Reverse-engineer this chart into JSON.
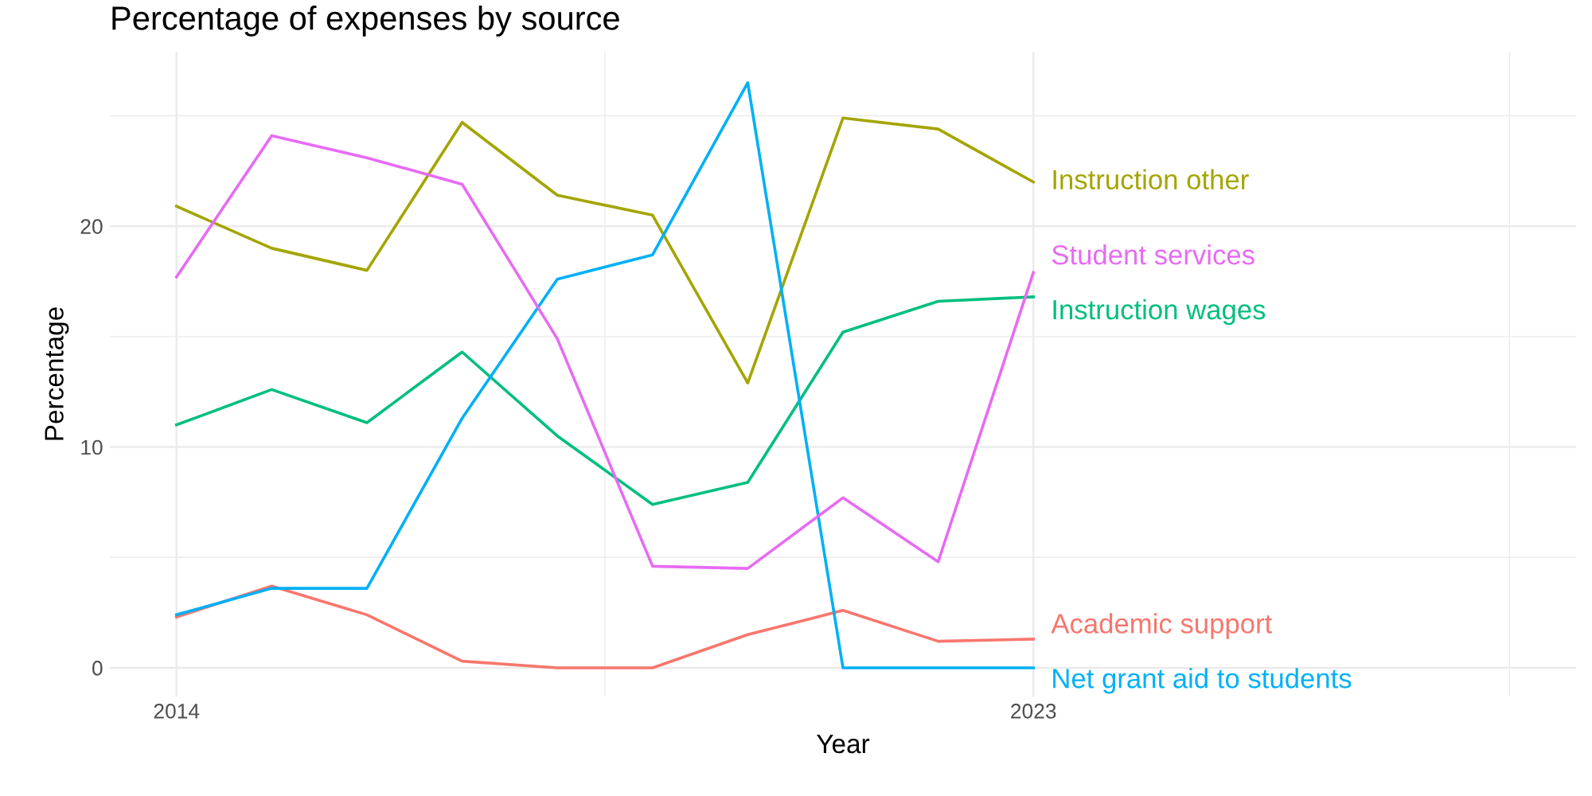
{
  "chart_data": {
    "type": "line",
    "title": "Percentage of expenses by source",
    "xlabel": "Year",
    "ylabel": "Percentage",
    "x": [
      2014,
      2015,
      2016,
      2017,
      2018,
      2019,
      2020,
      2021,
      2022,
      2023
    ],
    "series": [
      {
        "name": "Academic support",
        "color": "#f8766d",
        "values": [
          2.3,
          3.7,
          2.4,
          0.3,
          0,
          0,
          1.5,
          2.6,
          1.2,
          1.3
        ]
      },
      {
        "name": "Instruction other",
        "color": "#a3a500",
        "values": [
          20.9,
          19.0,
          18.0,
          24.7,
          21.4,
          20.5,
          12.9,
          24.9,
          24.4,
          22.0
        ]
      },
      {
        "name": "Instruction wages",
        "color": "#00bf7d",
        "values": [
          11.0,
          12.6,
          11.1,
          14.3,
          10.5,
          7.4,
          8.4,
          15.2,
          16.6,
          16.8
        ]
      },
      {
        "name": "Net grant aid to students",
        "color": "#00b0f6",
        "values": [
          2.4,
          3.6,
          3.6,
          11.3,
          17.6,
          18.7,
          26.5,
          0,
          0,
          0
        ]
      },
      {
        "name": "Student services",
        "color": "#e76bf3",
        "values": [
          17.7,
          24.1,
          23.1,
          21.9,
          14.9,
          4.6,
          4.5,
          7.7,
          4.8,
          17.9
        ]
      }
    ],
    "xlim": [
      2013.3,
      2028.7
    ],
    "xticks": [
      2014,
      {
        "value": 2018.5,
        "label": null
      },
      2023,
      {
        "value": 2028,
        "label": null
      }
    ],
    "ylim": [
      -1.3,
      27.9
    ],
    "yticks": [
      0,
      {
        "value": 5,
        "label": null
      },
      10,
      {
        "value": 15,
        "label": null
      },
      20,
      {
        "value": 25,
        "label": null
      }
    ],
    "grid": true,
    "legend": false,
    "marker": "none",
    "line_style": "solid"
  }
}
